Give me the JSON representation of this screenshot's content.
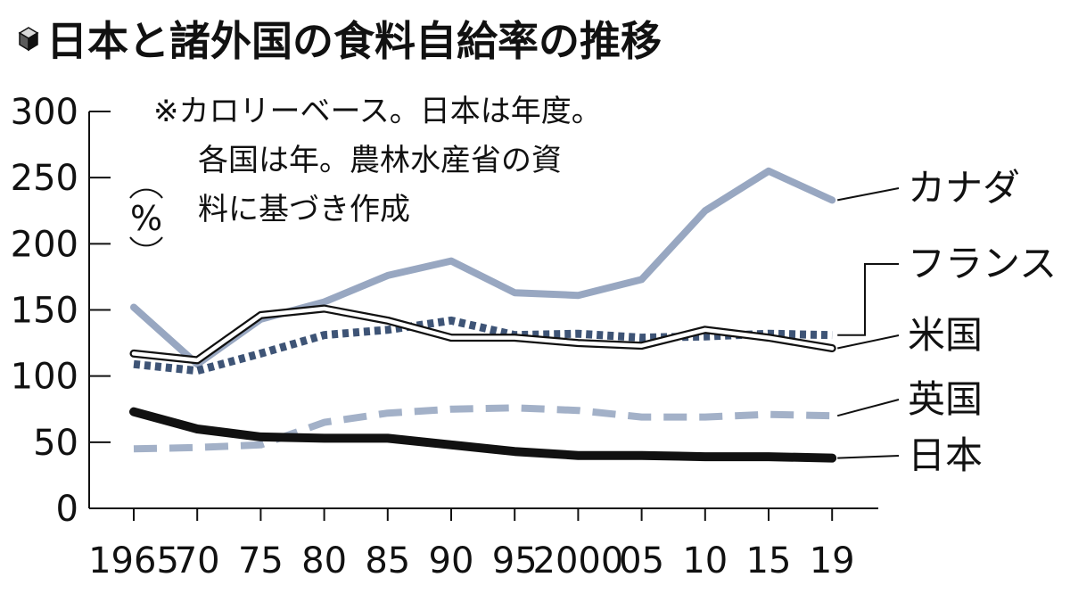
{
  "colors": {
    "axis": "#111111",
    "canada": "#98a7c1",
    "france": "#3e5476",
    "usa_outline": "#111111",
    "usa_fill": "#ffffff",
    "uk": "#a3b1c8",
    "japan": "#111111"
  },
  "chart_data": {
    "type": "line",
    "title": "日本と諸外国の食料自給率の推移",
    "icon": "cube-icon",
    "note_lines": [
      "※カロリーベース。日本は年度。",
      "各国は年。農林水産省の資",
      "料に基づき作成"
    ],
    "ylabel": "",
    "unit_label": "%",
    "ylim": [
      0,
      300
    ],
    "yticks": [
      0,
      50,
      100,
      150,
      200,
      250,
      300
    ],
    "x": [
      1965,
      1970,
      1975,
      1980,
      1985,
      1990,
      1995,
      2000,
      2005,
      2010,
      2015,
      2019
    ],
    "x_tick_labels": [
      "1965",
      "70",
      "75",
      "80",
      "85",
      "90",
      "95",
      "2000",
      "05",
      "10",
      "15",
      "19"
    ],
    "grid": false,
    "legend": "inline-right",
    "series": [
      {
        "name": "カナダ",
        "key": "canada",
        "style": "solid",
        "values": [
          152,
          109,
          143,
          156,
          176,
          187,
          163,
          161,
          173,
          225,
          255,
          233
        ]
      },
      {
        "name": "フランス",
        "key": "france",
        "style": "dotted",
        "values": [
          109,
          104,
          117,
          131,
          135,
          142,
          131,
          132,
          129,
          130,
          132,
          131
        ]
      },
      {
        "name": "米国",
        "key": "usa",
        "style": "double",
        "values": [
          117,
          112,
          146,
          151,
          142,
          129,
          129,
          125,
          123,
          135,
          129,
          121
        ]
      },
      {
        "name": "英国",
        "key": "uk",
        "style": "dashed",
        "values": [
          45,
          46,
          48,
          65,
          72,
          75,
          76,
          74,
          69,
          69,
          71,
          70
        ]
      },
      {
        "name": "日本",
        "key": "japan",
        "style": "solid-bold",
        "values": [
          73,
          60,
          54,
          53,
          53,
          48,
          43,
          40,
          40,
          39,
          39,
          38
        ]
      }
    ]
  }
}
